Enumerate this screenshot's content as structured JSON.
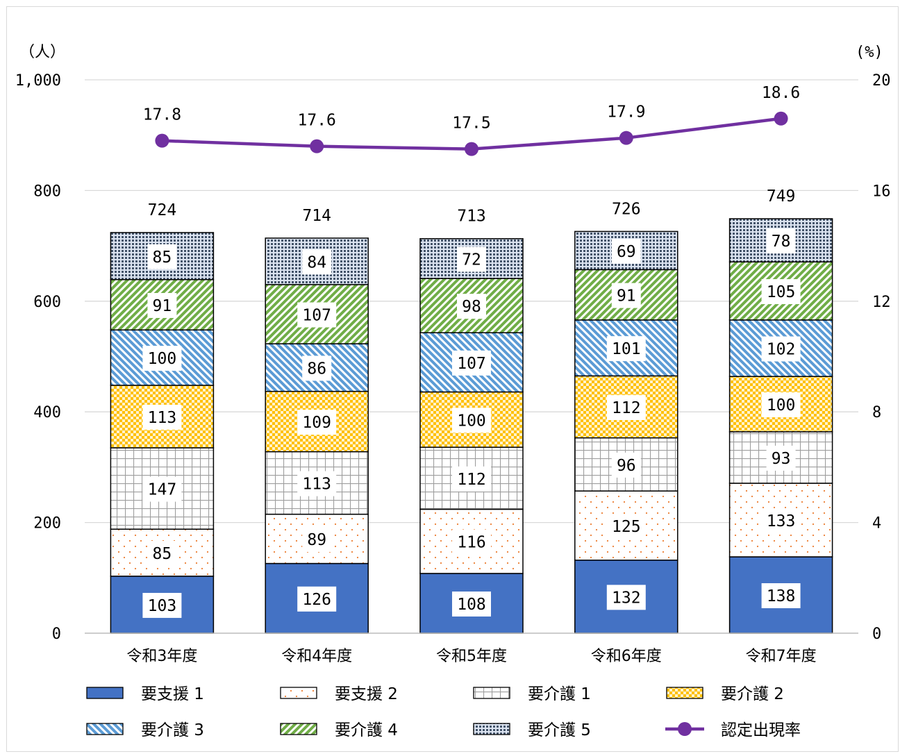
{
  "chart_data": {
    "type": "bar",
    "stacked": true,
    "categories": [
      "令和3年度",
      "令和4年度",
      "令和5年度",
      "令和6年度",
      "令和7年度"
    ],
    "series": [
      {
        "name": "要支援 1",
        "pattern": "solid",
        "color": "#4472c4",
        "values": [
          103,
          126,
          108,
          132,
          138
        ]
      },
      {
        "name": "要支援 2",
        "pattern": "dots",
        "color": "#ed7d31",
        "values": [
          85,
          89,
          116,
          125,
          133
        ]
      },
      {
        "name": "要介護 1",
        "pattern": "grid",
        "color": "#a5a5a5",
        "values": [
          147,
          113,
          112,
          96,
          93
        ]
      },
      {
        "name": "要介護 2",
        "pattern": "checker",
        "color": "#ffc000",
        "values": [
          113,
          109,
          100,
          112,
          100
        ]
      },
      {
        "name": "要介護 3",
        "pattern": "diagonal",
        "color": "#5b9bd5",
        "values": [
          100,
          86,
          107,
          101,
          102
        ]
      },
      {
        "name": "要介護 4",
        "pattern": "diagonal",
        "color": "#70ad47",
        "values": [
          91,
          107,
          98,
          91,
          105
        ]
      },
      {
        "name": "要介護 5",
        "pattern": "fine-grid",
        "color": "#44546a",
        "values": [
          85,
          84,
          72,
          69,
          78
        ]
      }
    ],
    "totals": [
      724,
      714,
      713,
      726,
      749
    ],
    "line": {
      "name": "認定出現率",
      "color": "#7030a0",
      "values": [
        17.8,
        17.6,
        17.5,
        17.9,
        18.6
      ],
      "labels": [
        "17.8",
        "17.6",
        "17.5",
        "17.9",
        "18.6"
      ]
    },
    "yunit_left": "（人）",
    "yunit_right": "(%)",
    "ylim": [
      0,
      1000
    ],
    "y2lim": [
      0,
      20
    ],
    "yticks": [
      0,
      200,
      400,
      600,
      800,
      1000
    ],
    "ytick_labels": [
      "0",
      "200",
      "400",
      "600",
      "800",
      "1,000"
    ],
    "y2ticks": [
      0,
      4,
      8,
      12,
      16,
      20
    ],
    "y2tick_labels": [
      "0",
      "4",
      "8",
      "12",
      "16",
      "20"
    ],
    "grid": true,
    "legend_position": "bottom"
  }
}
